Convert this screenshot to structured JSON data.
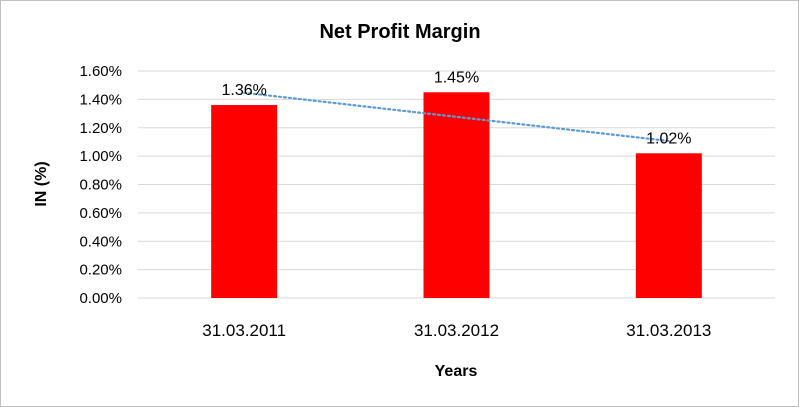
{
  "chart_data": {
    "type": "bar",
    "title": "Net Profit Margin",
    "xlabel": "Years",
    "ylabel": "IN (%)",
    "categories": [
      "31.03.2011",
      "31.03.2012",
      "31.03.2013"
    ],
    "values": [
      1.36,
      1.45,
      1.02
    ],
    "data_labels": [
      "1.36%",
      "1.45%",
      "1.02%"
    ],
    "ylim": [
      0,
      1.6
    ],
    "yticks": [
      0,
      0.2,
      0.4,
      0.6,
      0.8,
      1.0,
      1.2,
      1.4,
      1.6
    ],
    "ytick_labels": [
      "0.00%",
      "0.20%",
      "0.40%",
      "0.60%",
      "0.80%",
      "1.00%",
      "1.20%",
      "1.40%",
      "1.60%"
    ],
    "grid": true,
    "bar_color": "#ff0000",
    "trendline": {
      "type": "linear",
      "style": "dotted",
      "color": "#5b9bd5"
    }
  }
}
